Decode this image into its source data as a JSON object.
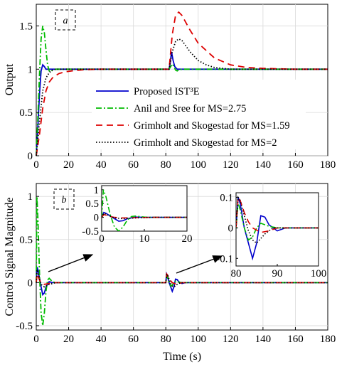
{
  "chart_data": [
    {
      "type": "line",
      "panel_label": "a",
      "xlabel": "",
      "ylabel": "Output",
      "xlim": [
        0,
        180
      ],
      "ylim": [
        0,
        1.75
      ],
      "xticks": [
        0,
        20,
        40,
        60,
        80,
        100,
        120,
        140,
        160,
        180
      ],
      "yticks": [
        0,
        0.5,
        1,
        1.5
      ],
      "ytick_labels": [
        "0",
        "0.5",
        "1",
        "1.5"
      ],
      "legend_position": "center-right",
      "series": [
        {
          "name": "Proposed IST³E",
          "color": "#0000cc",
          "style": "solid",
          "x": [
            0,
            1,
            2,
            3,
            4,
            5,
            6,
            8,
            10,
            15,
            82,
            82.8,
            83.5,
            84.5,
            85.5,
            87,
            90,
            95,
            180
          ],
          "y": [
            0,
            0.35,
            0.72,
            0.98,
            1.05,
            1.03,
            1.0,
            1.0,
            1.0,
            1.0,
            1.0,
            1.08,
            1.2,
            1.1,
            1.03,
            1.0,
            1.0,
            1.0,
            1.0
          ]
        },
        {
          "name": "Anil and Sree for MS=2.75",
          "color": "#00bb00",
          "style": "dashdot",
          "x": [
            0,
            1,
            2,
            3,
            4,
            5,
            6,
            7,
            8,
            9,
            10,
            12,
            14,
            82,
            83,
            84,
            85,
            86,
            87,
            88,
            90,
            95,
            180
          ],
          "y": [
            0,
            0.45,
            0.95,
            1.35,
            1.5,
            1.42,
            1.22,
            1.05,
            0.98,
            0.97,
            0.99,
            1.0,
            1.0,
            1.0,
            1.03,
            1.06,
            1.03,
            0.99,
            0.98,
            0.99,
            1.0,
            1.0,
            1.0
          ]
        },
        {
          "name": "Grimholt and Skogestad for MS=1.59",
          "color": "#dd0000",
          "style": "dashed",
          "x": [
            0,
            2,
            4,
            6,
            8,
            10,
            14,
            18,
            24,
            30,
            40,
            82,
            84,
            86,
            88,
            90,
            95,
            100,
            110,
            120,
            130,
            140,
            160,
            180
          ],
          "y": [
            0,
            0.25,
            0.55,
            0.75,
            0.85,
            0.9,
            0.95,
            0.97,
            0.985,
            0.995,
            1.0,
            1.0,
            1.4,
            1.62,
            1.66,
            1.62,
            1.45,
            1.3,
            1.13,
            1.05,
            1.02,
            1.01,
            1.0,
            1.0
          ]
        },
        {
          "name": "Grimholt and Skogestad for MS=2",
          "color": "#000000",
          "style": "dotted",
          "x": [
            0,
            2,
            4,
            6,
            8,
            10,
            12,
            16,
            20,
            30,
            82,
            84,
            86,
            88,
            90,
            95,
            100,
            105,
            110,
            120,
            130,
            180
          ],
          "y": [
            0,
            0.4,
            0.75,
            0.9,
            0.96,
            0.99,
            1.0,
            1.0,
            1.0,
            1.0,
            1.0,
            1.2,
            1.32,
            1.35,
            1.33,
            1.2,
            1.1,
            1.05,
            1.02,
            1.0,
            1.0,
            1.0
          ]
        }
      ]
    },
    {
      "type": "line",
      "panel_label": "b",
      "xlabel": "Time (s)",
      "ylabel": "Control Signal Magnitude",
      "xlim": [
        0,
        180
      ],
      "ylim": [
        -0.55,
        1.15
      ],
      "xticks": [
        0,
        20,
        40,
        60,
        80,
        100,
        120,
        140,
        160,
        180
      ],
      "yticks": [
        -0.5,
        0,
        0.5,
        1
      ],
      "ytick_labels": [
        "-0.5",
        "0",
        "0.5",
        "1"
      ],
      "series": [
        {
          "name": "Proposed IST³E",
          "color": "#0000cc",
          "style": "solid",
          "x": [
            0,
            0.5,
            1,
            2,
            3,
            4,
            5,
            6,
            8,
            10,
            80,
            80.5,
            81,
            82,
            83,
            84,
            85,
            86,
            87,
            88,
            90,
            92,
            95,
            180
          ],
          "y": [
            0,
            0.18,
            0.15,
            0.05,
            -0.05,
            -0.14,
            -0.12,
            -0.05,
            0.01,
            0,
            0,
            0.1,
            0.08,
            0.0,
            -0.05,
            -0.1,
            -0.05,
            0.04,
            0.035,
            0.01,
            -0.01,
            0,
            0,
            0
          ]
        },
        {
          "name": "Anil and Sree for MS=2.75",
          "color": "#00bb00",
          "style": "dashdot",
          "x": [
            0,
            0.4,
            1,
            2,
            3,
            4,
            5,
            6,
            7,
            8,
            10,
            12,
            80,
            80.5,
            81,
            82,
            83,
            84,
            85,
            86,
            88,
            90,
            180
          ],
          "y": [
            0,
            1.0,
            0.75,
            0.1,
            -0.35,
            -0.5,
            -0.35,
            -0.1,
            0.03,
            0.05,
            0.01,
            0,
            0,
            0.08,
            0.06,
            0.0,
            -0.04,
            -0.03,
            0.0,
            0.015,
            0.005,
            0,
            0
          ]
        },
        {
          "name": "Grimholt and Skogestad for MS=1.59",
          "color": "#dd0000",
          "style": "dashed",
          "x": [
            0,
            0.5,
            1,
            2,
            3,
            5,
            8,
            12,
            80,
            80.5,
            81,
            82,
            83,
            84,
            86,
            88,
            90,
            180
          ],
          "y": [
            0,
            0.1,
            0.08,
            0.03,
            0.0,
            -0.02,
            -0.01,
            0,
            0,
            0.1,
            0.09,
            0.05,
            0.02,
            0.0,
            -0.015,
            -0.01,
            0,
            0
          ]
        },
        {
          "name": "Grimholt and Skogestad for MS=2",
          "color": "#000000",
          "style": "dotted",
          "x": [
            0,
            0.5,
            1,
            2,
            3,
            5,
            8,
            12,
            80,
            80.5,
            81,
            82,
            83,
            84,
            85,
            87,
            89,
            92,
            180
          ],
          "y": [
            0,
            0.15,
            0.12,
            0.04,
            -0.02,
            -0.05,
            -0.02,
            0,
            0,
            0.1,
            0.09,
            0.04,
            -0.01,
            -0.04,
            -0.05,
            -0.02,
            0.0,
            0,
            0
          ]
        }
      ],
      "insets": [
        {
          "xlim": [
            0,
            20
          ],
          "ylim": [
            -0.5,
            1.15
          ],
          "xticks": [
            0,
            10,
            20
          ],
          "yticks": [
            -0.5,
            0,
            0.5,
            1
          ],
          "ytick_labels": [
            "-0.5",
            "0",
            "0.5",
            "1"
          ]
        },
        {
          "xlim": [
            80,
            100
          ],
          "ylim": [
            -0.125,
            0.115
          ],
          "xticks": [
            80,
            90,
            100
          ],
          "yticks": [
            -0.1,
            0,
            0.1
          ],
          "ytick_labels": [
            "-0.1",
            "0",
            "0.1"
          ]
        }
      ]
    }
  ]
}
